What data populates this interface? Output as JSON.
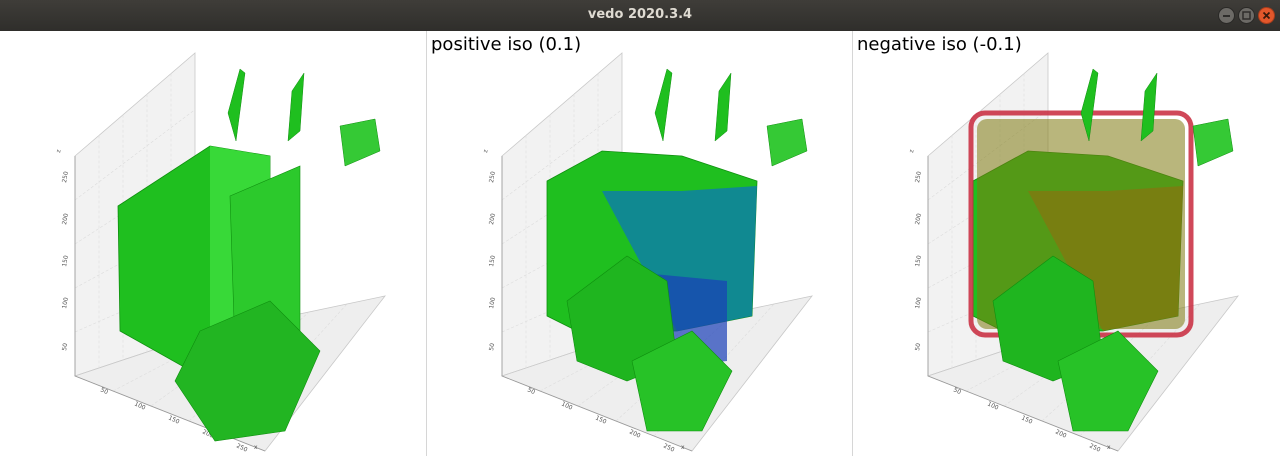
{
  "window": {
    "title": "vedo 2020.3.4",
    "buttons": [
      "minimize",
      "maximize",
      "close"
    ]
  },
  "panels": [
    {
      "title": "",
      "mesh_colors": [
        "#1fbf1f"
      ]
    },
    {
      "title": "positive iso (0.1)",
      "mesh_colors": [
        "#1fbf1f",
        "#0e7fa6",
        "#1a3fb8"
      ]
    },
    {
      "title": "negative iso (-0.1)",
      "mesh_colors": [
        "#1fbf1f",
        "#7f7a10",
        "#c8283c"
      ]
    }
  ],
  "axes": {
    "z_label": "z",
    "x_label": "x",
    "z_ticks": [
      "50",
      "100",
      "150",
      "200",
      "250"
    ],
    "x_ticks": [
      "50",
      "100",
      "150",
      "200",
      "250"
    ]
  }
}
